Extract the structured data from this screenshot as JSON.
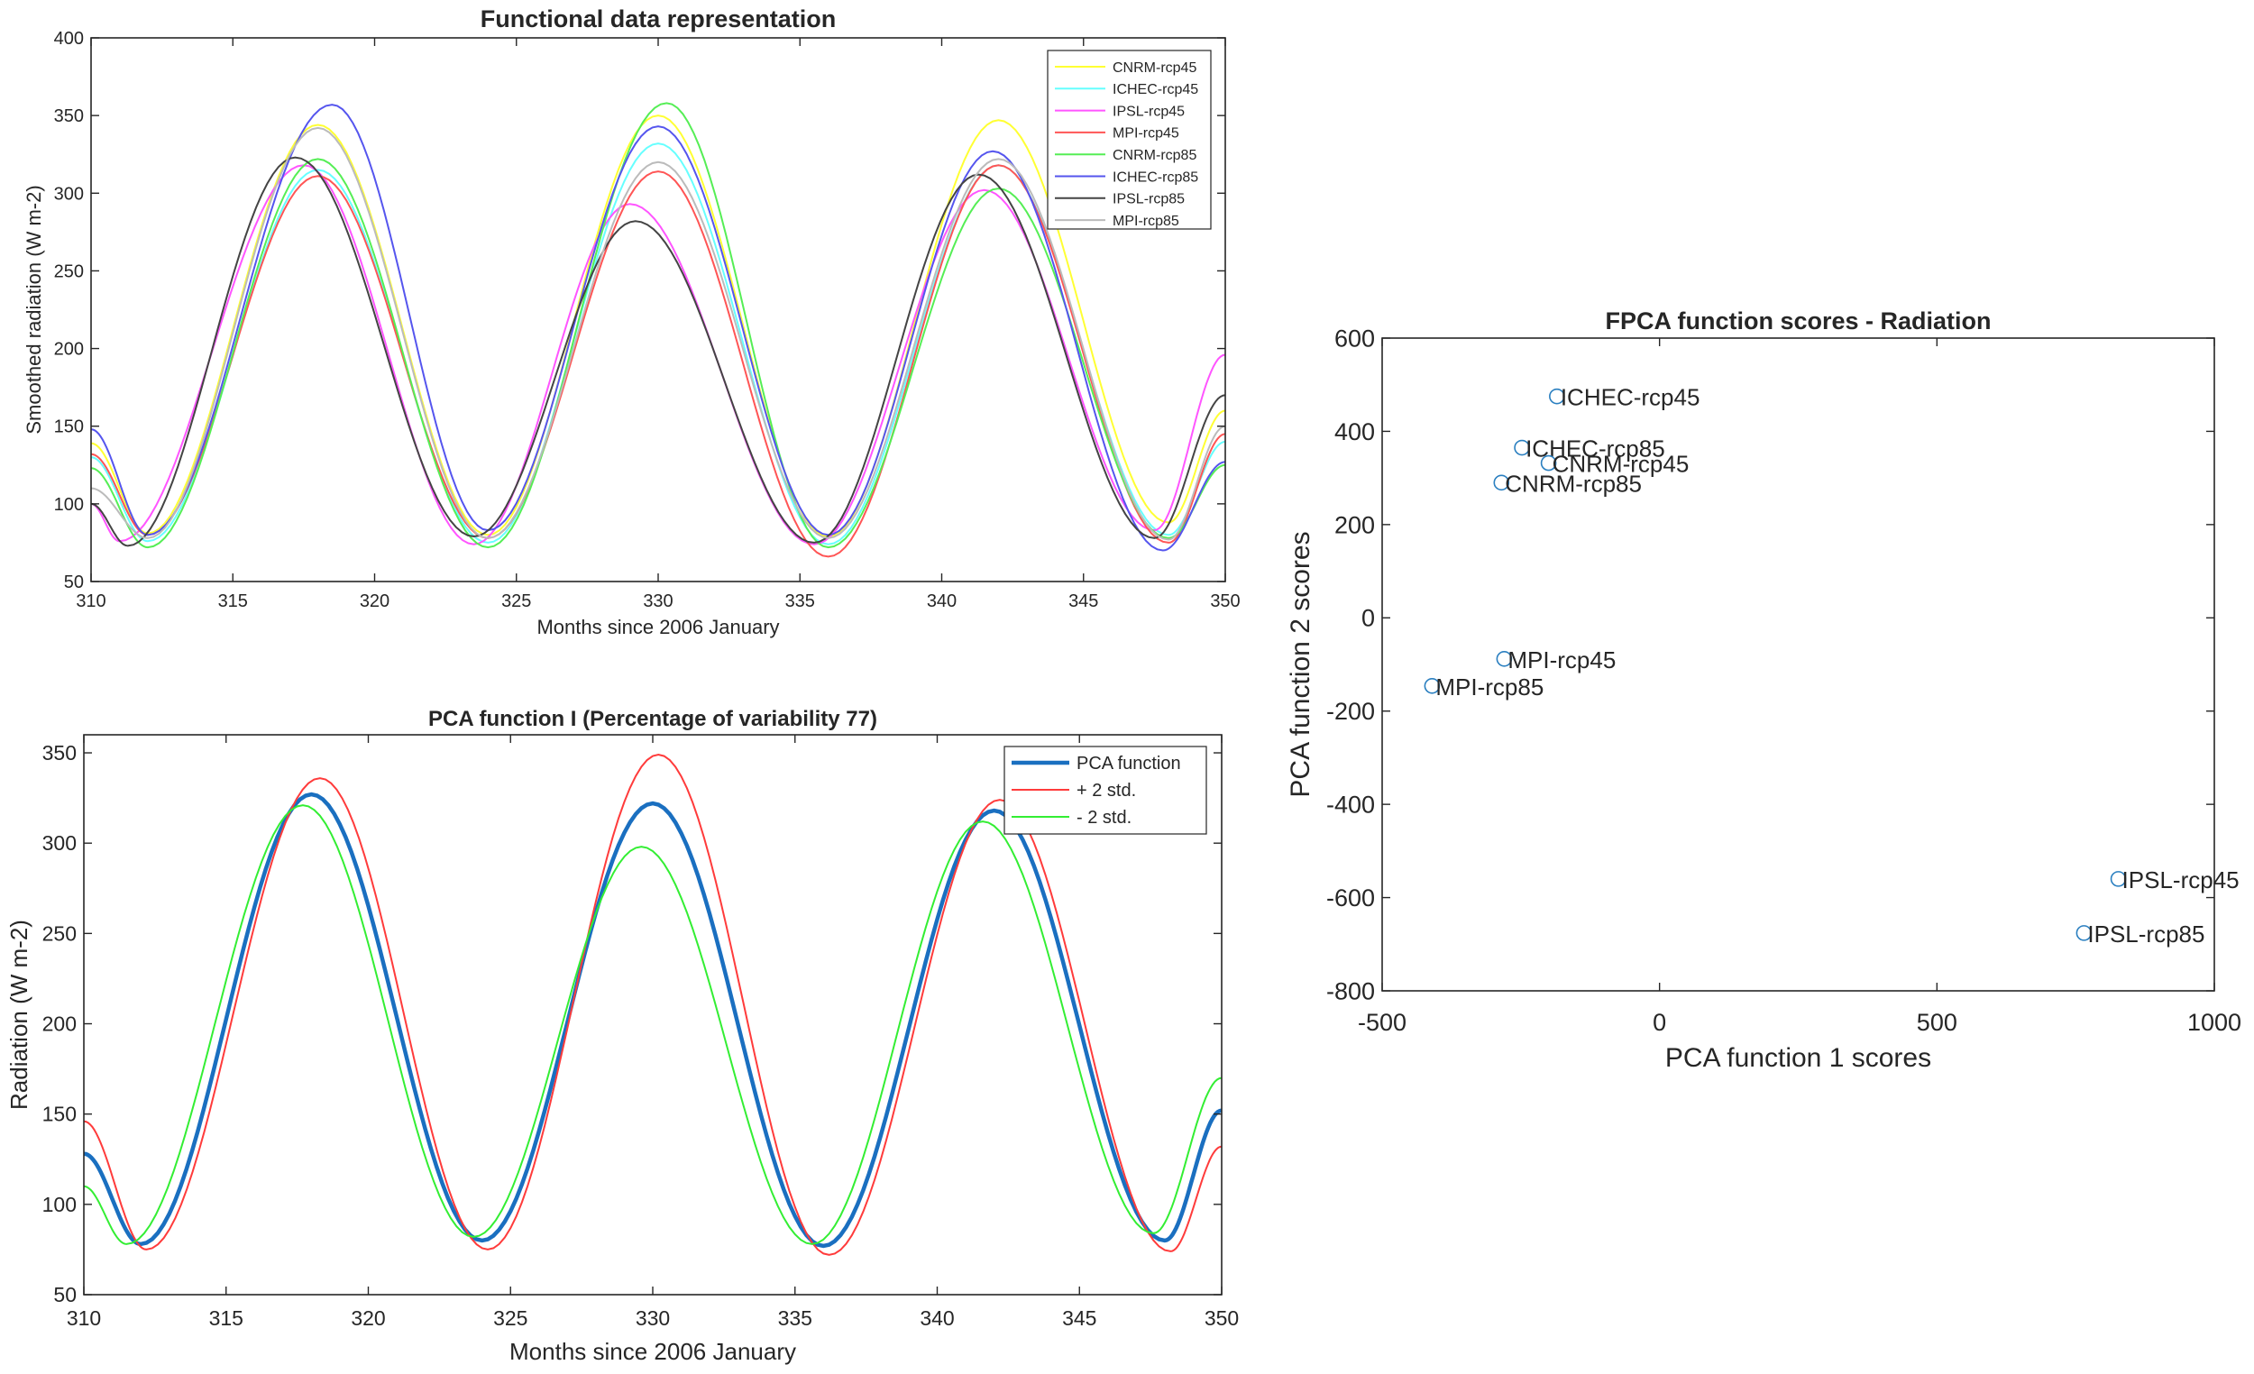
{
  "chart_data": [
    {
      "type": "line",
      "title": "Functional data representation",
      "xlabel": "Months since 2006 January",
      "ylabel": "Smoothed radiation (W m-2)",
      "xlim": [
        310,
        350
      ],
      "ylim": [
        50,
        400
      ],
      "xticks": [
        "310",
        "315",
        "320",
        "325",
        "330",
        "335",
        "340",
        "345",
        "350"
      ],
      "yticks": [
        "50",
        "100",
        "150",
        "200",
        "250",
        "300",
        "350",
        "400"
      ],
      "grid": false,
      "legend_position": "top-right",
      "series": [
        {
          "name": "CNRM-rcp45",
          "color": "#ffff33",
          "x": [
            310,
            312,
            318,
            324,
            330,
            336,
            342,
            348,
            350
          ],
          "y": [
            139,
            81,
            344,
            80,
            350,
            79,
            347,
            88,
            160
          ]
        },
        {
          "name": "ICHEC-rcp45",
          "color": "#66ffff",
          "x": [
            310,
            312,
            318,
            324,
            330,
            336,
            342,
            348,
            350
          ],
          "y": [
            130,
            76,
            315,
            75,
            332,
            74,
            318,
            80,
            140
          ]
        },
        {
          "name": "IPSL-rcp45",
          "color": "#ff55ff",
          "x": [
            310,
            311,
            317.5,
            323.5,
            329,
            335.5,
            341.5,
            347.5,
            350
          ],
          "y": [
            100,
            76,
            318,
            74,
            293,
            74,
            302,
            83,
            196
          ]
        },
        {
          "name": "MPI-rcp45",
          "color": "#ff5555",
          "x": [
            310,
            312,
            318,
            324,
            330,
            336,
            342,
            348,
            350
          ],
          "y": [
            132,
            80,
            311,
            78,
            314,
            66,
            318,
            75,
            145
          ]
        },
        {
          "name": "CNRM-rcp85",
          "color": "#55ee55",
          "x": [
            310,
            312,
            318,
            324,
            330.3,
            336,
            342,
            348,
            350
          ],
          "y": [
            123,
            72,
            322,
            72,
            358,
            72,
            303,
            78,
            125
          ]
        },
        {
          "name": "ICHEC-rcp85",
          "color": "#5555ee",
          "x": [
            310,
            312,
            318.5,
            324,
            330,
            336,
            341.8,
            347.8,
            350
          ],
          "y": [
            148,
            80,
            357,
            83,
            343,
            80,
            327,
            70,
            127
          ]
        },
        {
          "name": "IPSL-rcp85",
          "color": "#444444",
          "x": [
            310,
            311.3,
            317.2,
            323.5,
            329.2,
            335.5,
            341.3,
            347.5,
            350
          ],
          "y": [
            100,
            73,
            323,
            79,
            282,
            75,
            312,
            78,
            170
          ]
        },
        {
          "name": "MPI-rcp85",
          "color": "#bbbbbb",
          "x": [
            310,
            312,
            318,
            324,
            330,
            336,
            342,
            348,
            350
          ],
          "y": [
            110,
            78,
            342,
            78,
            320,
            78,
            322,
            77,
            150
          ]
        }
      ]
    },
    {
      "type": "line",
      "title": "PCA function I    (Percentage of variability 77)",
      "xlabel": "Months since 2006 January",
      "ylabel": "Radiation (W m-2)",
      "xlim": [
        310,
        350
      ],
      "ylim": [
        50,
        360
      ],
      "xticks": [
        "310",
        "315",
        "320",
        "325",
        "330",
        "335",
        "340",
        "345",
        "350"
      ],
      "yticks": [
        "50",
        "100",
        "150",
        "200",
        "250",
        "300",
        "350"
      ],
      "grid": false,
      "legend_position": "top-right",
      "series": [
        {
          "name": "PCA function",
          "color": "#1a6fc0",
          "x": [
            310,
            312,
            318,
            324,
            330,
            336,
            342,
            348,
            350
          ],
          "y": [
            128,
            78,
            327,
            80,
            322,
            77,
            318,
            80,
            152
          ]
        },
        {
          "name": "+ 2 std.",
          "color": "#ff3b3b",
          "x": [
            310,
            312.2,
            318.3,
            324.2,
            330.2,
            336.2,
            342.2,
            348.2,
            350
          ],
          "y": [
            146,
            75,
            336,
            75,
            349,
            72,
            324,
            74,
            132
          ]
        },
        {
          "name": "- 2 std.",
          "color": "#33ee33",
          "x": [
            310,
            311.5,
            317.7,
            323.7,
            329.6,
            335.6,
            341.6,
            347.6,
            350
          ],
          "y": [
            110,
            78,
            321,
            82,
            298,
            78,
            312,
            84,
            170
          ]
        }
      ]
    },
    {
      "type": "scatter",
      "title": "FPCA function scores - Radiation",
      "xlabel": "PCA function 1 scores",
      "ylabel": "PCA function 2 scores",
      "xlim": [
        -500,
        1000
      ],
      "ylim": [
        -800,
        600
      ],
      "xticks": [
        "-500",
        "0",
        "500",
        "1000"
      ],
      "yticks": [
        "-800",
        "-600",
        "-400",
        "-200",
        "0",
        "200",
        "400",
        "600"
      ],
      "grid": false,
      "marker": "open-circle",
      "marker_color": "#2a7fc0",
      "points": [
        {
          "label": "ICHEC-rcp45",
          "x": -185,
          "y": 475
        },
        {
          "label": "ICHEC-rcp85",
          "x": -248,
          "y": 365
        },
        {
          "label": "CNRM-rcp45",
          "x": -200,
          "y": 332
        },
        {
          "label": "CNRM-rcp85",
          "x": -285,
          "y": 290
        },
        {
          "label": "MPI-rcp45",
          "x": -280,
          "y": -88
        },
        {
          "label": "MPI-rcp85",
          "x": -410,
          "y": -146
        },
        {
          "label": "IPSL-rcp45",
          "x": 827,
          "y": -560
        },
        {
          "label": "IPSL-rcp85",
          "x": 765,
          "y": -676
        }
      ]
    }
  ]
}
